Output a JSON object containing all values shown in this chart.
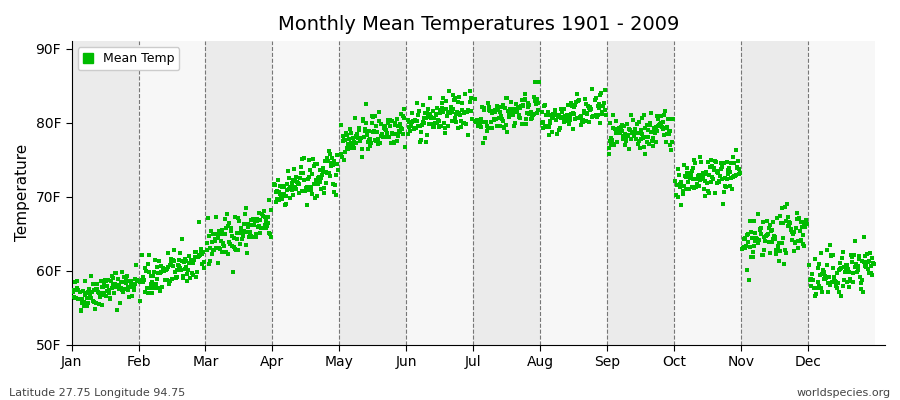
{
  "title": "Monthly Mean Temperatures 1901 - 2009",
  "ylabel": "Temperature",
  "xlabel_labels": [
    "Jan",
    "Feb",
    "Mar",
    "Apr",
    "May",
    "Jun",
    "Jul",
    "Aug",
    "Sep",
    "Oct",
    "Nov",
    "Dec"
  ],
  "ytick_labels": [
    "50F",
    "60F",
    "70F",
    "80F",
    "90F"
  ],
  "ytick_values": [
    50,
    60,
    70,
    80,
    90
  ],
  "ylim": [
    50,
    91
  ],
  "legend_label": "Mean Temp",
  "dot_color": "#00bb00",
  "dot_size": 6,
  "footer_left": "Latitude 27.75 Longitude 94.75",
  "footer_right": "worldspecies.org",
  "background_color": "#ffffff",
  "band_color_gray": "#ebebeb",
  "band_color_white": "#f7f7f7",
  "n_years": 109,
  "monthly_means_start": [
    56.5,
    58.5,
    63.5,
    70.5,
    77.5,
    79.5,
    80.0,
    80.0,
    77.5,
    71.5,
    63.0,
    58.5
  ],
  "monthly_means_end": [
    58.5,
    61.5,
    66.5,
    73.5,
    80.0,
    82.0,
    82.5,
    82.0,
    79.5,
    73.5,
    66.0,
    61.0
  ],
  "monthly_stds": [
    1.2,
    1.4,
    1.5,
    1.5,
    1.3,
    1.3,
    1.2,
    1.2,
    1.3,
    1.4,
    1.6,
    1.6
  ],
  "seed": 42
}
